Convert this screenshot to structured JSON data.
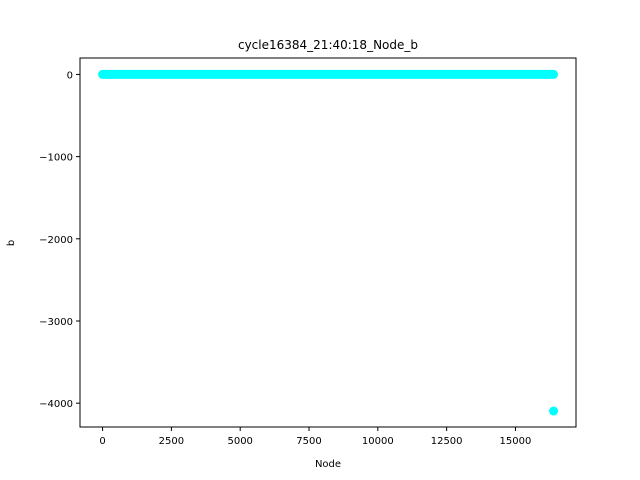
{
  "chart_data": {
    "type": "scatter",
    "title": "cycle16384_21:40:18_Node_b",
    "xlabel": "Node",
    "ylabel": "b",
    "xlim": [
      -820,
      17200
    ],
    "ylim": [
      -4290,
      200
    ],
    "xticks": [
      0,
      2500,
      5000,
      7500,
      10000,
      12500,
      15000
    ],
    "xtick_labels": [
      "0",
      "2500",
      "5000",
      "7500",
      "10000",
      "12500",
      "15000"
    ],
    "yticks": [
      0,
      -1000,
      -2000,
      -3000,
      -4000
    ],
    "ytick_labels": [
      "0",
      "−1000",
      "−2000",
      "−3000",
      "−4000"
    ],
    "grid": false,
    "legend": "none",
    "marker_color": "#00ffff",
    "series": [
      {
        "dense_segment": {
          "x_start": 0,
          "x_end": 16383,
          "y": 0
        },
        "points": [
          {
            "x": 16384,
            "y": -4096
          }
        ]
      }
    ]
  }
}
